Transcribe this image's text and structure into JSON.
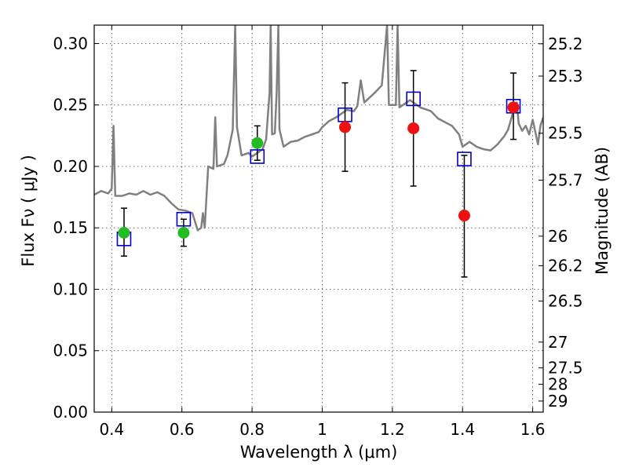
{
  "chart_data": {
    "type": "scatter",
    "title": "",
    "xlabel": "Wavelength  λ (μm)",
    "ylabel": "Flux  Fν  ( μJy )",
    "y2label": "Magnitude (AB)",
    "xlim": [
      0.35,
      1.63
    ],
    "ylim": [
      0.0,
      0.315
    ],
    "x_ticks": [
      0.4,
      0.6,
      0.8,
      1.0,
      1.2,
      1.4,
      1.6
    ],
    "x_tick_labels": [
      "0.4",
      "0.6",
      "0.8",
      "1",
      "1.2",
      "1.4",
      "1.6"
    ],
    "y_ticks": [
      0.0,
      0.05,
      0.1,
      0.15,
      0.2,
      0.25,
      0.3
    ],
    "y_tick_labels": [
      "0.00",
      "0.05",
      "0.10",
      "0.15",
      "0.20",
      "0.25",
      "0.30"
    ],
    "y2_ticks": [
      {
        "label": "25.2",
        "flux": 0.2998
      },
      {
        "label": "25.3",
        "flux": 0.2735
      },
      {
        "label": "25.5",
        "flux": 0.227
      },
      {
        "label": "25.7",
        "flux": 0.1888
      },
      {
        "label": "26",
        "flux": 0.1432
      },
      {
        "label": "26.2",
        "flux": 0.1191
      },
      {
        "label": "26.5",
        "flux": 0.0904
      },
      {
        "label": "27",
        "flux": 0.057
      },
      {
        "label": "27.5",
        "flux": 0.036
      },
      {
        "label": "28",
        "flux": 0.0227
      },
      {
        "label": "29",
        "flux": 0.009
      }
    ],
    "grid": true,
    "series": [
      {
        "name": "model_spectrum",
        "kind": "line",
        "color": "#808080",
        "points": [
          [
            0.35,
            0.177
          ],
          [
            0.37,
            0.18
          ],
          [
            0.39,
            0.178
          ],
          [
            0.4,
            0.182
          ],
          [
            0.405,
            0.233
          ],
          [
            0.41,
            0.176
          ],
          [
            0.43,
            0.176
          ],
          [
            0.45,
            0.178
          ],
          [
            0.47,
            0.177
          ],
          [
            0.49,
            0.18
          ],
          [
            0.51,
            0.177
          ],
          [
            0.53,
            0.179
          ],
          [
            0.55,
            0.176
          ],
          [
            0.57,
            0.17
          ],
          [
            0.59,
            0.165
          ],
          [
            0.61,
            0.164
          ],
          [
            0.63,
            0.162
          ],
          [
            0.645,
            0.148
          ],
          [
            0.655,
            0.15
          ],
          [
            0.66,
            0.162
          ],
          [
            0.665,
            0.15
          ],
          [
            0.675,
            0.2
          ],
          [
            0.69,
            0.198
          ],
          [
            0.695,
            0.24
          ],
          [
            0.7,
            0.2
          ],
          [
            0.72,
            0.202
          ],
          [
            0.73,
            0.209
          ],
          [
            0.745,
            0.23
          ],
          [
            0.752,
            0.315
          ],
          [
            0.757,
            0.232
          ],
          [
            0.77,
            0.209
          ],
          [
            0.79,
            0.211
          ],
          [
            0.8,
            0.208
          ],
          [
            0.81,
            0.21
          ],
          [
            0.83,
            0.214
          ],
          [
            0.84,
            0.222
          ],
          [
            0.85,
            0.26
          ],
          [
            0.853,
            0.315
          ],
          [
            0.857,
            0.226
          ],
          [
            0.865,
            0.227
          ],
          [
            0.87,
            0.26
          ],
          [
            0.875,
            0.315
          ],
          [
            0.878,
            0.23
          ],
          [
            0.89,
            0.216
          ],
          [
            0.91,
            0.22
          ],
          [
            0.93,
            0.221
          ],
          [
            0.95,
            0.224
          ],
          [
            0.97,
            0.226
          ],
          [
            0.99,
            0.228
          ],
          [
            1.0,
            0.232
          ],
          [
            1.02,
            0.237
          ],
          [
            1.04,
            0.24
          ],
          [
            1.05,
            0.242
          ],
          [
            1.06,
            0.244
          ],
          [
            1.07,
            0.246
          ],
          [
            1.09,
            0.245
          ],
          [
            1.1,
            0.249
          ],
          [
            1.11,
            0.27
          ],
          [
            1.12,
            0.252
          ],
          [
            1.15,
            0.26
          ],
          [
            1.17,
            0.266
          ],
          [
            1.185,
            0.315
          ],
          [
            1.19,
            0.25
          ],
          [
            1.21,
            0.25
          ],
          [
            1.215,
            0.315
          ],
          [
            1.22,
            0.248
          ],
          [
            1.25,
            0.254
          ],
          [
            1.28,
            0.248
          ],
          [
            1.31,
            0.245
          ],
          [
            1.33,
            0.239
          ],
          [
            1.35,
            0.236
          ],
          [
            1.37,
            0.233
          ],
          [
            1.39,
            0.226
          ],
          [
            1.4,
            0.216
          ],
          [
            1.42,
            0.22
          ],
          [
            1.44,
            0.216
          ],
          [
            1.46,
            0.214
          ],
          [
            1.48,
            0.213
          ],
          [
            1.5,
            0.218
          ],
          [
            1.52,
            0.225
          ],
          [
            1.53,
            0.23
          ],
          [
            1.545,
            0.245
          ],
          [
            1.555,
            0.252
          ],
          [
            1.56,
            0.235
          ],
          [
            1.57,
            0.229
          ],
          [
            1.58,
            0.233
          ],
          [
            1.59,
            0.226
          ],
          [
            1.6,
            0.238
          ],
          [
            1.615,
            0.218
          ],
          [
            1.622,
            0.233
          ],
          [
            1.63,
            0.24
          ]
        ]
      },
      {
        "name": "model_photometry",
        "kind": "open_square",
        "color": "#0000cc",
        "points": [
          [
            0.435,
            0.141
          ],
          [
            0.605,
            0.157
          ],
          [
            0.815,
            0.208
          ],
          [
            1.065,
            0.242
          ],
          [
            1.26,
            0.255
          ],
          [
            1.405,
            0.206
          ],
          [
            1.545,
            0.249
          ]
        ]
      },
      {
        "name": "optical_detections",
        "kind": "filled_circle",
        "color": "#22bb22",
        "points": [
          {
            "x": 0.435,
            "y": 0.146,
            "yerr": [
              0.127,
              0.166
            ]
          },
          {
            "x": 0.605,
            "y": 0.146,
            "yerr": [
              0.135,
              0.157
            ]
          },
          {
            "x": 0.815,
            "y": 0.219,
            "yerr": [
              0.205,
              0.233
            ]
          }
        ]
      },
      {
        "name": "near_ir_detections",
        "kind": "filled_circle",
        "color": "#ee1111",
        "points": [
          {
            "x": 1.065,
            "y": 0.232,
            "yerr": [
              0.196,
              0.268
            ]
          },
          {
            "x": 1.26,
            "y": 0.231,
            "yerr": [
              0.184,
              0.278
            ]
          },
          {
            "x": 1.405,
            "y": 0.16,
            "yerr": [
              0.11,
              0.209
            ]
          },
          {
            "x": 1.545,
            "y": 0.248,
            "yerr": [
              0.222,
              0.276
            ]
          }
        ]
      }
    ]
  }
}
